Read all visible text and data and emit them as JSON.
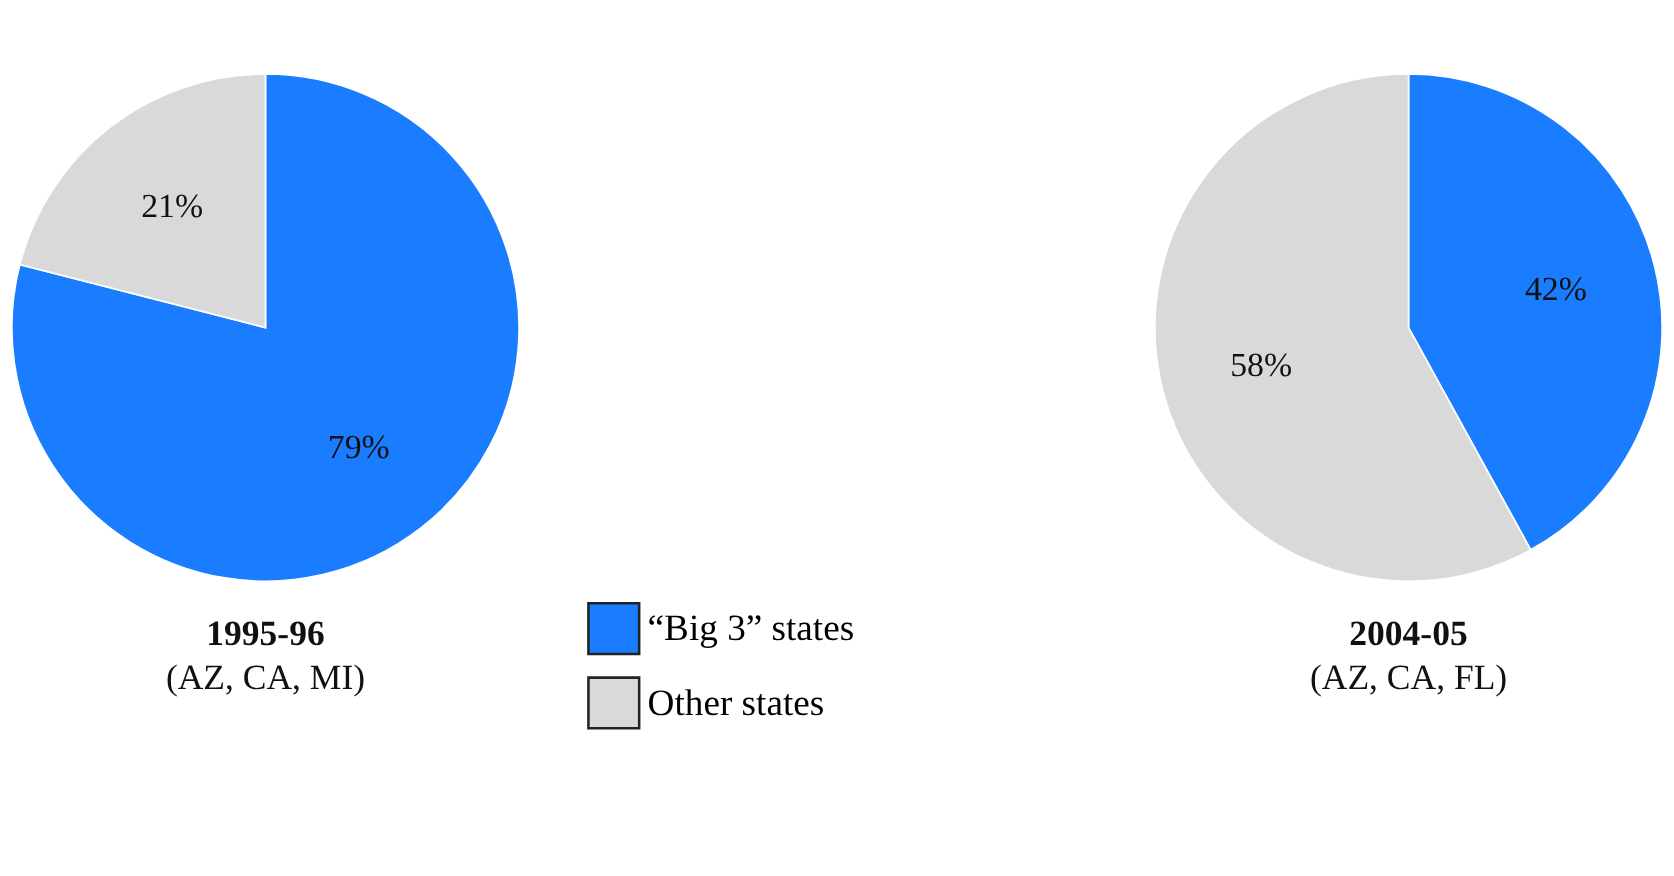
{
  "chart_data": [
    {
      "type": "pie",
      "title": "1995-96",
      "subtitle": "(AZ, CA, MI)",
      "categories": [
        "“Big 3” states",
        "Other states"
      ],
      "values": [
        79,
        21
      ],
      "colors": [
        "#1a7cff",
        "#d9d9d9"
      ],
      "value_labels": [
        "79%",
        "21%"
      ],
      "legend": "bottom right"
    },
    {
      "type": "pie",
      "title": "2004-05",
      "subtitle": "(AZ, CA, FL)",
      "categories": [
        null,
        null
      ],
      "values": [
        42,
        58
      ],
      "colors": [
        "#1a7cff",
        "#d9d9d9"
      ],
      "value_labels": [
        "42%",
        "58%"
      ],
      "legend": false
    }
  ]
}
